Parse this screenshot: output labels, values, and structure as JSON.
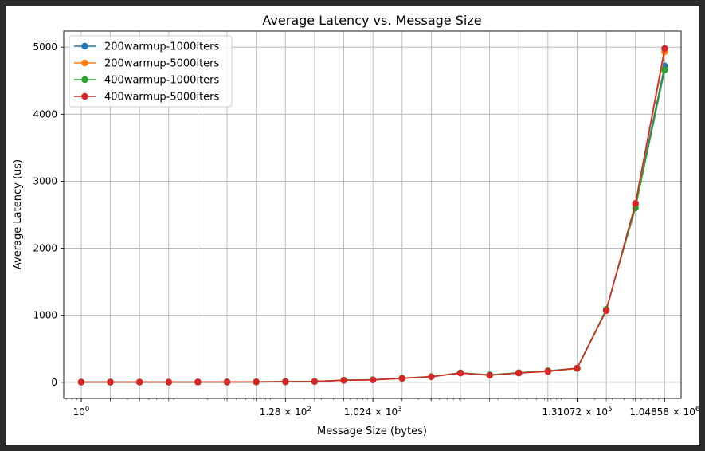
{
  "chart_data": {
    "type": "line",
    "title": "Average Latency vs. Message Size",
    "xlabel": "Message Size (bytes)",
    "ylabel": "Average Latency (us)",
    "x_scale": "log2",
    "x": [
      1,
      2,
      4,
      8,
      16,
      32,
      64,
      128,
      256,
      512,
      1024,
      2048,
      4096,
      8192,
      16384,
      32768,
      65536,
      131072,
      262144,
      524288,
      1048576
    ],
    "xlim": [
      0.66,
      1550000
    ],
    "x_ticks": [
      {
        "value": 1,
        "base": "10",
        "exp": "0",
        "mant": ""
      },
      {
        "value": 128,
        "base": "10",
        "exp": "2",
        "mant": "1.28"
      },
      {
        "value": 1024,
        "base": "10",
        "exp": "3",
        "mant": "1.024"
      },
      {
        "value": 131072,
        "base": "10",
        "exp": "5",
        "mant": "1.31072"
      },
      {
        "value": 1048576,
        "base": "10",
        "exp": "6",
        "mant": "1.04858"
      }
    ],
    "ylim": [
      -240,
      5240
    ],
    "y_ticks": [
      "0",
      "1000",
      "2000",
      "3000",
      "4000",
      "5000"
    ],
    "grid": true,
    "legend_position": "upper-left",
    "series": [
      {
        "name": "200warmup-1000iters",
        "color": "#1f77b4",
        "values": [
          3,
          3,
          3,
          3,
          4,
          5,
          6,
          8,
          12,
          30,
          38,
          60,
          85,
          140,
          110,
          140,
          170,
          210,
          1080,
          2650,
          4720
        ]
      },
      {
        "name": "200warmup-5000iters",
        "color": "#ff7f0e",
        "values": [
          3,
          3,
          3,
          3,
          4,
          5,
          6,
          8,
          12,
          30,
          37,
          60,
          84,
          140,
          108,
          142,
          165,
          205,
          1075,
          2660,
          4930
        ]
      },
      {
        "name": "400warmup-1000iters",
        "color": "#2ca02c",
        "values": [
          3,
          3,
          3,
          3,
          4,
          5,
          6,
          8,
          12,
          31,
          39,
          62,
          86,
          142,
          112,
          144,
          172,
          208,
          1090,
          2600,
          4660
        ]
      },
      {
        "name": "400warmup-5000iters",
        "color": "#d62728",
        "values": [
          3,
          3,
          3,
          3,
          4,
          5,
          6,
          8,
          12,
          30,
          36,
          59,
          83,
          138,
          106,
          139,
          163,
          212,
          1070,
          2670,
          4980
        ]
      }
    ]
  }
}
